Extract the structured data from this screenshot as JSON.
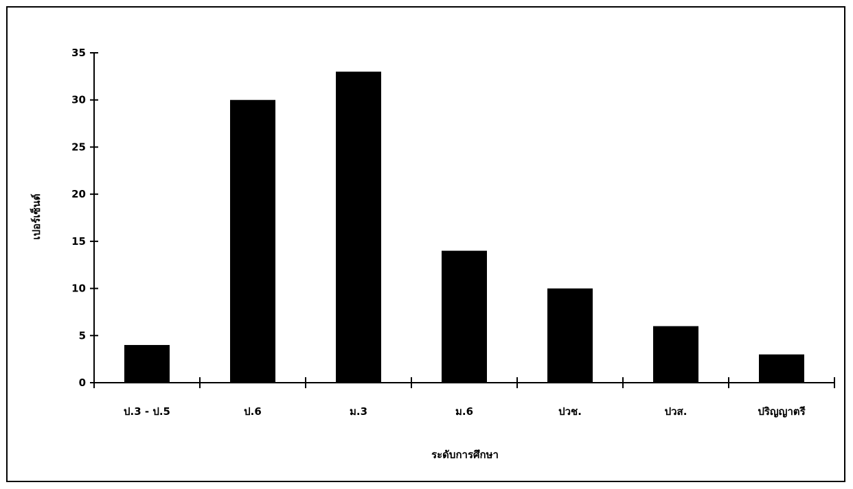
{
  "chart_data": {
    "type": "bar",
    "title": "",
    "xlabel": "ระดับการศึกษา",
    "ylabel": "เปอร์เซ็นต์",
    "categories": [
      "ป.3 - ป.5",
      "ป.6",
      "ม.3",
      "ม.6",
      "ปวช.",
      "ปวส.",
      "ปริญญาตรี"
    ],
    "values": [
      4,
      30,
      33,
      14,
      10,
      6,
      3
    ],
    "ylim": [
      0,
      35
    ],
    "yticks": [
      0,
      5,
      10,
      15,
      20,
      25,
      30,
      35
    ],
    "grid": false,
    "legend": "none",
    "bar_color": "#000000"
  }
}
